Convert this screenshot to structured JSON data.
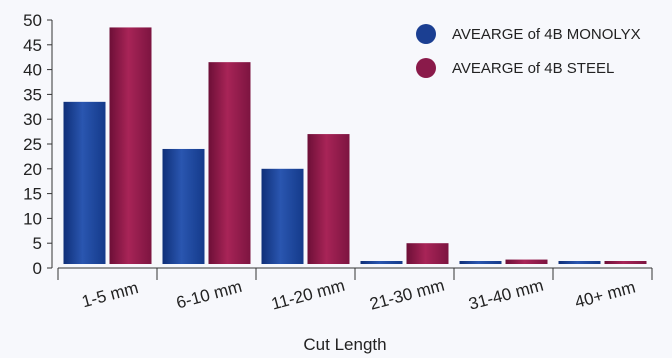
{
  "chart_data": {
    "type": "bar",
    "title": "",
    "xlabel": "Cut Length",
    "ylabel": "",
    "ylim": [
      0,
      50
    ],
    "yticks": [
      0,
      5,
      10,
      15,
      20,
      25,
      30,
      35,
      40,
      45,
      50
    ],
    "grid": false,
    "legend_position": "top-right",
    "categories": [
      "1-5 mm",
      "6-10 mm",
      "11-20 mm",
      "21-30 mm",
      "31-40 mm",
      "40+ mm"
    ],
    "series": [
      {
        "name": "AVEARGE of 4B MONOLYX",
        "color": "#1b3f92",
        "values": [
          33.5,
          24,
          20,
          1.2,
          0.5,
          1.2
        ]
      },
      {
        "name": "AVEARGE of 4B STEEL",
        "color": "#8a1a4a",
        "values": [
          48.5,
          41.5,
          27,
          5,
          1.7,
          1.4
        ]
      }
    ]
  }
}
